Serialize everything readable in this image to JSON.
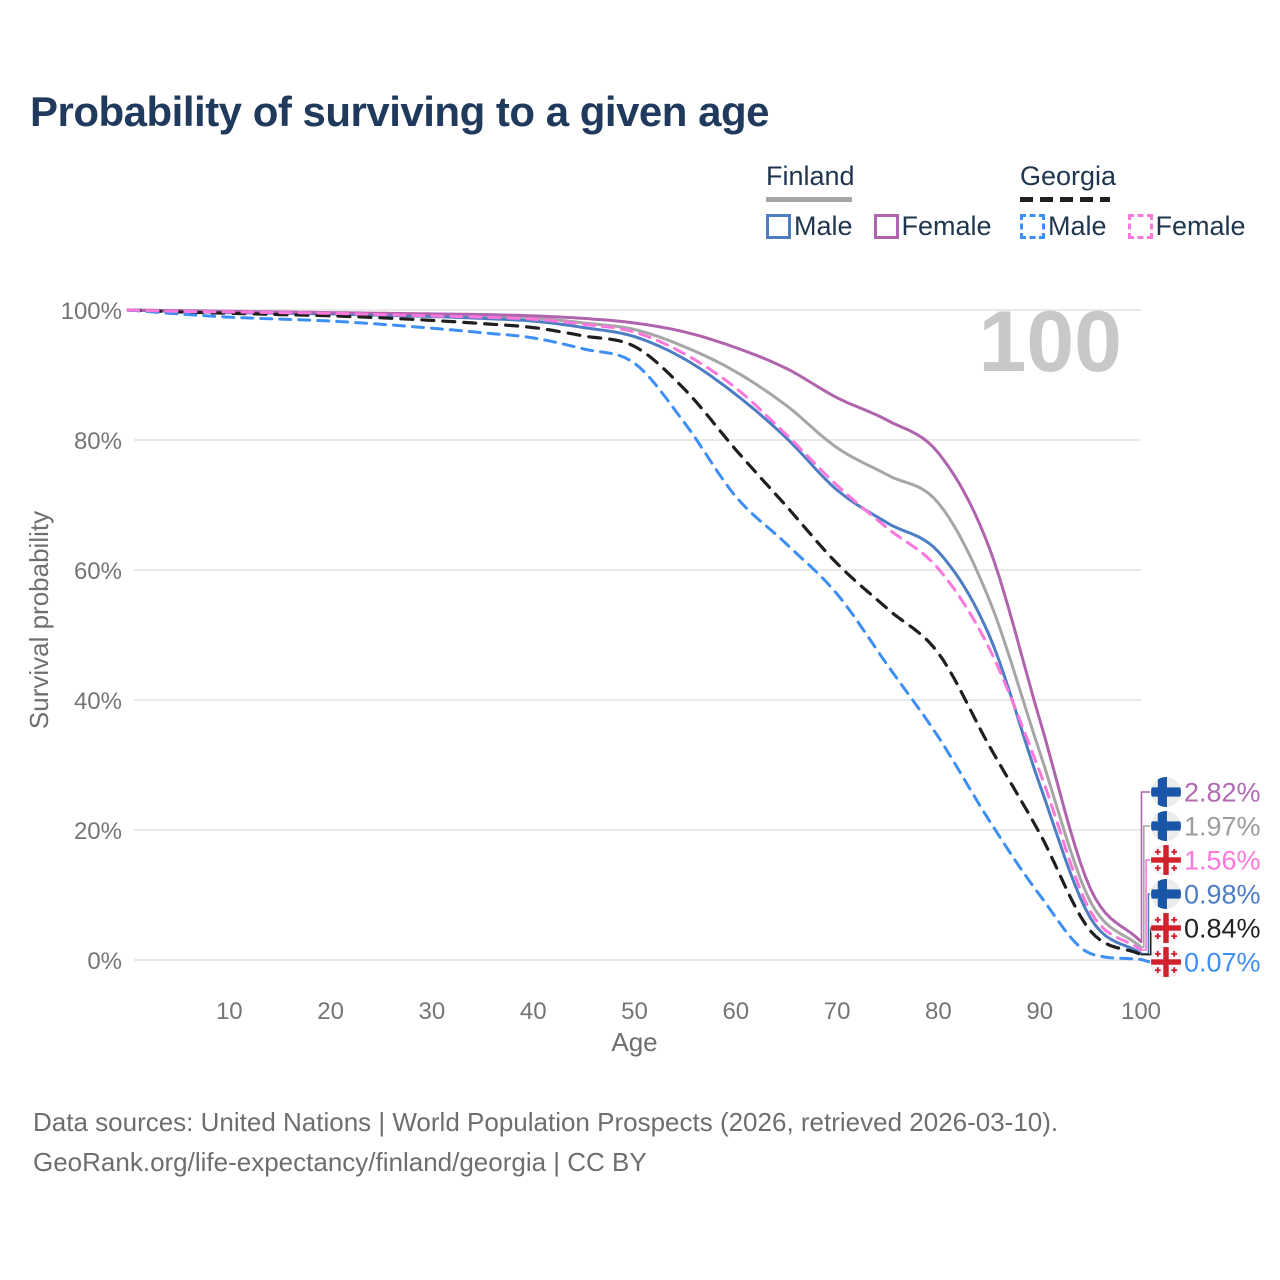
{
  "header": {
    "title": "Probability of surviving to a given age"
  },
  "legend": {
    "groups": [
      {
        "country": "Finland",
        "line_style": "solid",
        "underline_color": "#a6a6a6",
        "items": [
          {
            "label": "Male",
            "color": "#4d7dc3",
            "dashed": false
          },
          {
            "label": "Female",
            "color": "#b064ae",
            "dashed": false
          }
        ]
      },
      {
        "country": "Georgia",
        "line_style": "dashed",
        "underline_color": "#1f1f1f",
        "items": [
          {
            "label": "Male",
            "color": "#3e8ff5",
            "dashed": true
          },
          {
            "label": "Female",
            "color": "#fc77dc",
            "dashed": true
          }
        ]
      }
    ]
  },
  "chart_data": {
    "type": "line",
    "title": "Probability of surviving to a given age",
    "xlabel": "Age",
    "ylabel": "Survival probability",
    "xlim": [
      0,
      100
    ],
    "ylim": [
      0,
      100
    ],
    "grid": "horizontal-only",
    "watermark": "100",
    "x_ticks": [
      10,
      20,
      30,
      40,
      50,
      60,
      70,
      80,
      90,
      100
    ],
    "y_ticks": [
      {
        "value": 0,
        "label": "0%"
      },
      {
        "value": 20,
        "label": "20%"
      },
      {
        "value": 40,
        "label": "40%"
      },
      {
        "value": 60,
        "label": "60%"
      },
      {
        "value": 80,
        "label": "80%"
      },
      {
        "value": 100,
        "label": "100%"
      }
    ],
    "ages": [
      0,
      5,
      10,
      15,
      20,
      25,
      30,
      35,
      40,
      45,
      50,
      55,
      60,
      65,
      70,
      75,
      80,
      85,
      90,
      95,
      100
    ],
    "series": [
      {
        "name": "Finland",
        "country": "Finland",
        "group": "overall",
        "style": "solid",
        "color": "#a6a6a6",
        "width": 3,
        "dash": "",
        "values": [
          100,
          99.8,
          99.7,
          99.6,
          99.5,
          99.4,
          99.2,
          99.0,
          98.8,
          98.0,
          97.0,
          94.3,
          90.5,
          85.3,
          78.8,
          74.6,
          70.3,
          55.5,
          32.0,
          9.0,
          1.97
        ]
      },
      {
        "name": "Finland Male",
        "country": "Finland",
        "group": "Male",
        "style": "solid",
        "color": "#4d7dc3",
        "width": 3,
        "dash": "",
        "values": [
          100,
          99.8,
          99.6,
          99.5,
          99.4,
          99.2,
          99.0,
          98.7,
          98.3,
          97.3,
          95.9,
          92.4,
          87.0,
          80.3,
          72.3,
          67.2,
          62.8,
          50.0,
          27.0,
          6.5,
          0.98
        ]
      },
      {
        "name": "Finland Female",
        "country": "Finland",
        "group": "Female",
        "style": "solid",
        "color": "#b064ae",
        "width": 3,
        "dash": "",
        "values": [
          100,
          99.9,
          99.8,
          99.7,
          99.6,
          99.5,
          99.4,
          99.3,
          99.1,
          98.7,
          98.0,
          96.6,
          94.2,
          91.0,
          86.5,
          83.0,
          78.0,
          63.5,
          37.0,
          11.0,
          2.82
        ]
      },
      {
        "name": "Georgia",
        "country": "Georgia",
        "group": "overall",
        "style": "dashed",
        "color": "#1f1f1f",
        "width": 3.2,
        "dash": "12 9",
        "values": [
          100,
          99.7,
          99.5,
          99.3,
          99.1,
          98.8,
          98.4,
          97.9,
          97.3,
          96.0,
          94.4,
          87.7,
          78.5,
          69.8,
          61.0,
          54.0,
          47.2,
          33.0,
          19.5,
          4.5,
          0.84
        ]
      },
      {
        "name": "Georgia Male",
        "country": "Georgia",
        "group": "Male",
        "style": "dashed",
        "color": "#3e8ff5",
        "width": 3,
        "dash": "11 8",
        "values": [
          100,
          99.4,
          98.9,
          98.6,
          98.3,
          97.8,
          97.2,
          96.5,
          95.7,
          94.0,
          91.8,
          82.5,
          71.3,
          64.0,
          56.3,
          45.3,
          34.3,
          21.5,
          10.0,
          1.0,
          0.07
        ]
      },
      {
        "name": "Georgia Female",
        "country": "Georgia",
        "group": "Female",
        "style": "dashed",
        "color": "#fc77dc",
        "width": 3,
        "dash": "11 8",
        "values": [
          100,
          99.8,
          99.7,
          99.6,
          99.5,
          99.3,
          99.1,
          98.9,
          98.6,
          97.8,
          96.6,
          93.2,
          88.0,
          80.8,
          73.0,
          66.4,
          60.2,
          48.0,
          29.0,
          7.5,
          1.56
        ]
      }
    ],
    "end_labels": [
      {
        "flag": "finland",
        "series": "Finland Female",
        "value": "2.82%",
        "color": "#b06ab0"
      },
      {
        "flag": "finland",
        "series": "Finland",
        "value": "1.97%",
        "color": "#9d9d9d"
      },
      {
        "flag": "georgia",
        "series": "Georgia Female",
        "value": "1.56%",
        "color": "#fc77dc"
      },
      {
        "flag": "finland",
        "series": "Finland Male",
        "value": "0.98%",
        "color": "#4d7dc3"
      },
      {
        "flag": "georgia",
        "series": "Georgia",
        "value": "0.84%",
        "color": "#222222"
      },
      {
        "flag": "georgia",
        "series": "Georgia Male",
        "value": "0.07%",
        "color": "#3e8ff5"
      }
    ]
  },
  "footer": {
    "line1": "Data sources: United Nations | World Population Prospects (2026, retrieved 2026-03-10).",
    "line2": "GeoRank.org/life-expectancy/finland/georgia | CC BY"
  }
}
